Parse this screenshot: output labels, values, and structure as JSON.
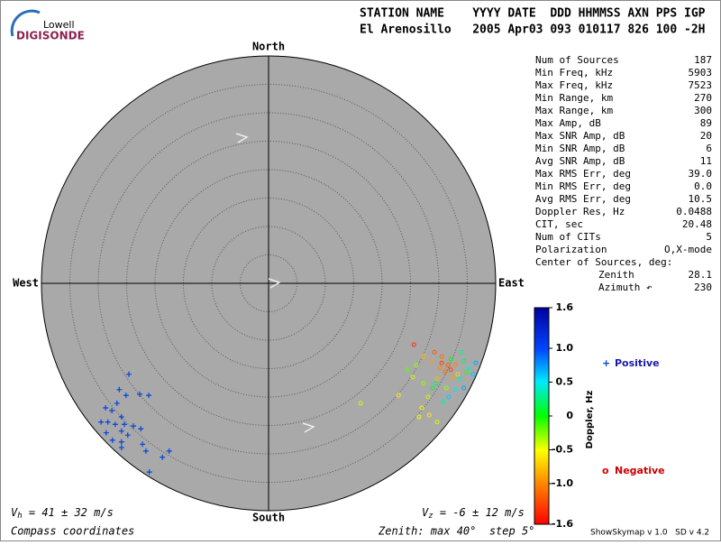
{
  "header": {
    "logo_top": "Lowell",
    "logo_bottom": "DIGISONDE",
    "row1": "STATION NAME    YYYY DATE  DDD HHMMSS AXN PPS IGP",
    "row2": "El Arenosillo   2005 Apr03 093 010117 826 100 -2H"
  },
  "stats": [
    {
      "label": "Num of Sources",
      "value": "187"
    },
    {
      "label": "Min Freq, kHz",
      "value": "5903"
    },
    {
      "label": "Max Freq, kHz",
      "value": "7523"
    },
    {
      "label": "Min Range, km",
      "value": "270"
    },
    {
      "label": "Max Range, km",
      "value": "300"
    },
    {
      "label": "Max Amp, dB",
      "value": "89"
    },
    {
      "label": "Max SNR Amp, dB",
      "value": "20"
    },
    {
      "label": "Min SNR Amp, dB",
      "value": "6"
    },
    {
      "label": "Avg SNR Amp, dB",
      "value": "11"
    },
    {
      "label": "Max RMS Err, deg",
      "value": "39.0"
    },
    {
      "label": "Min RMS Err, deg",
      "value": "0.0"
    },
    {
      "label": "Avg RMS Err, deg",
      "value": "10.5"
    },
    {
      "label": "Doppler Res, Hz",
      "value": "0.0488"
    },
    {
      "label": "CIT, sec",
      "value": "20.48"
    },
    {
      "label": "Num of CITs",
      "value": "5"
    },
    {
      "label": "Polarization",
      "value": "O,X-mode"
    }
  ],
  "center": {
    "label": "Center of Sources, deg:",
    "rows": [
      {
        "label": "Zenith",
        "value": "28.1"
      },
      {
        "label": "Azimuth ↶",
        "value": "230"
      }
    ]
  },
  "footer": {
    "vh": {
      "v": "V",
      "sub": "h",
      "text": " = 41 ± 32 m/s"
    },
    "vz": {
      "v": "V",
      "sub": "z",
      "text": " = -6 ± 12 m/s"
    },
    "coords": "Compass coordinates",
    "zenith": "Zenith: max 40°  step 5°",
    "version": "ShowSkymap v 1.0   SD v 4.2"
  },
  "chart_data": {
    "type": "skymap",
    "directions": {
      "north": "North",
      "south": "South",
      "west": "West",
      "east": "East"
    },
    "rlim": [
      0,
      40
    ],
    "ring_step": 5,
    "colorbar": {
      "label": "Doppler, Hz",
      "clim": [
        -1.6,
        1.6
      ],
      "ticks": [
        1.6,
        {
          "value": 1,
          "label": "1.0"
        },
        0.5,
        0,
        -0.5,
        {
          "value": -1,
          "label": "-1.0"
        },
        -1.6
      ]
    },
    "series": [
      {
        "name": "Positive",
        "marker": "+",
        "color": "#0044dd",
        "x": [
          -24.6,
          -21.1,
          -22.7,
          -26.3,
          -25.1,
          -28.7,
          -26.7,
          -27.6,
          -25.9,
          -29.5,
          -28.3,
          -27.0,
          -25.4,
          -23.8,
          -22.5,
          -25.9,
          -28.6,
          -24.8,
          -27.5,
          -25.9,
          -22.2,
          -17.5,
          -18.7,
          -21.6,
          -25.9,
          -21.0
        ],
        "y": [
          -16.0,
          -19.7,
          -19.5,
          -18.7,
          -19.7,
          -21.9,
          -21.1,
          -22.4,
          -23.5,
          -24.4,
          -24.4,
          -24.8,
          -24.8,
          -25.1,
          -25.6,
          -26.0,
          -26.3,
          -26.7,
          -27.6,
          -27.9,
          -28.3,
          -29.5,
          -30.6,
          -29.5,
          -28.9,
          -33.2
        ]
      },
      {
        "name": "Negative",
        "marker": "o",
        "color": "#dd0000",
        "x": [
          25.6,
          29.2,
          30.5,
          31.6,
          32.1,
          31.1,
          30.2,
          32.9,
          28.6,
          29.7,
          27.3,
          34.0,
          34.4,
          35.2,
          36.0,
          36.5,
          33.7,
          32.9,
          31.7,
          34.4,
          30.8,
          28.9,
          27.3,
          25.4,
          26.0,
          28.1,
          27.0,
          28.3,
          29.7,
          26.5,
          22.9,
          16.2,
          24.4,
          33.3,
          32.4,
          30.5,
          32.1,
          34.9,
          29.5,
          31.3
        ],
        "y": [
          -10.8,
          -12.1,
          -12.9,
          -14.4,
          -15.2,
          -15.6,
          -14.9,
          -14.3,
          -13.7,
          -16.8,
          -12.9,
          -12.1,
          -13.7,
          -14.9,
          -16.0,
          -14.0,
          -16.8,
          -18.7,
          -20.0,
          -18.4,
          -20.8,
          -18.4,
          -17.6,
          -16.5,
          -14.4,
          -20.0,
          -21.9,
          -23.2,
          -24.4,
          -23.5,
          -19.7,
          -21.1,
          -15.2,
          -16.0,
          -16.5,
          -14.0,
          -13.3,
          -15.6,
          -17.6,
          -18.4
        ],
        "doppler": [
          -1.4,
          -1.2,
          -1.1,
          -1.2,
          -1.3,
          -1.1,
          -1.0,
          -1.0,
          -0.9,
          -0.8,
          -0.8,
          0.3,
          0.2,
          0.5,
          0.6,
          0.7,
          0.4,
          0.5,
          0.6,
          0.7,
          0.3,
          0.1,
          -0.3,
          -0.4,
          -0.3,
          -0.4,
          -0.5,
          -0.6,
          -0.4,
          -0.5,
          -0.6,
          -0.4,
          -0.2,
          -0.7,
          -0.9,
          -1.3,
          0.0,
          -0.1,
          0.2,
          -0.3
        ]
      }
    ]
  }
}
